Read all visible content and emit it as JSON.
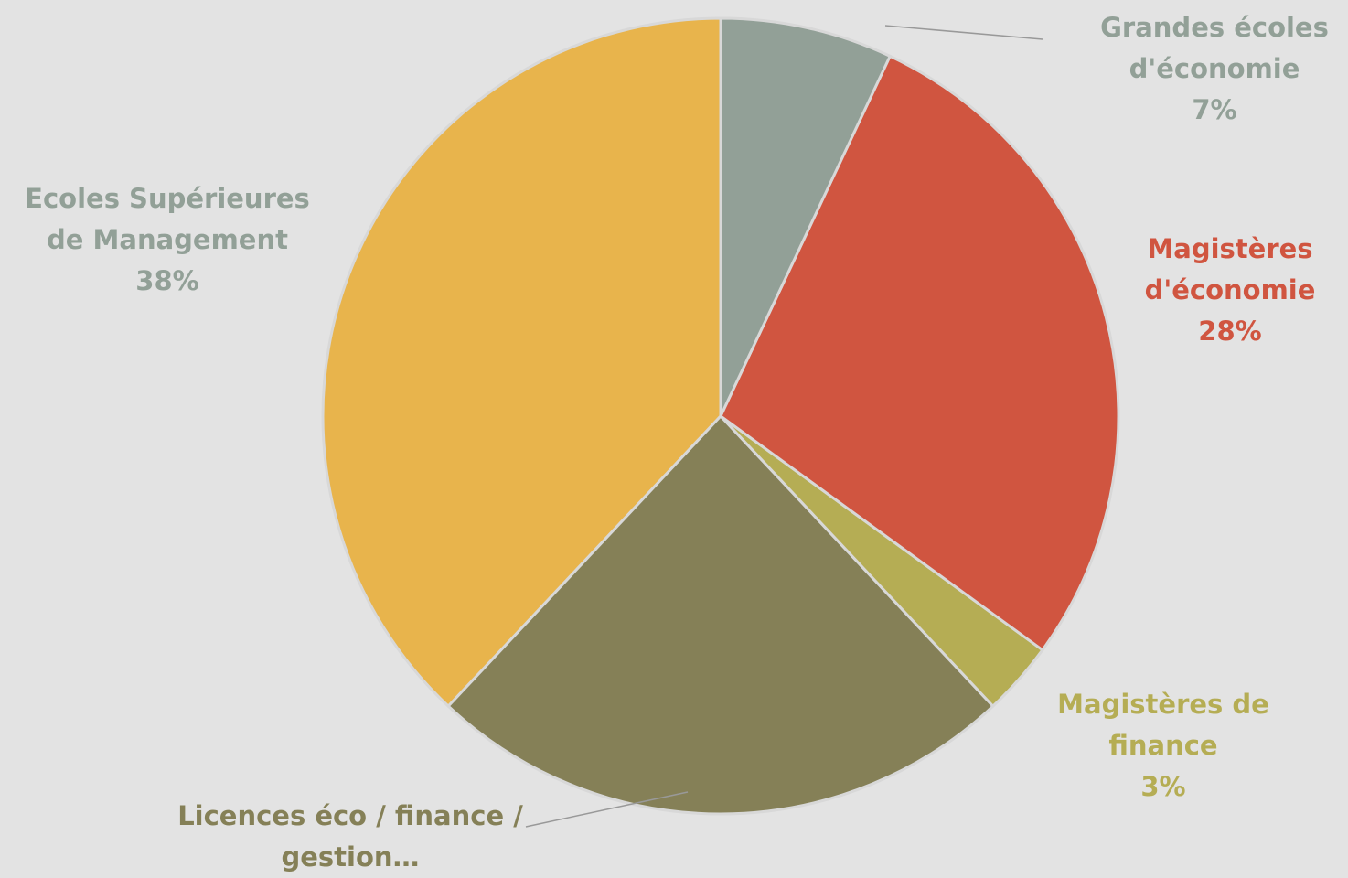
{
  "chart_data": {
    "type": "pie",
    "categories": [
      "Grandes écoles d'économie",
      "Magistères d'économie",
      "Magistères de finance",
      "Licences éco / finance / gestion…",
      "Ecoles Supérieures de Management"
    ],
    "values": [
      7,
      28,
      3,
      24,
      38
    ],
    "value_labels": [
      "7%",
      "28%",
      "3%",
      null,
      "38%"
    ],
    "colors": [
      "#92a097",
      "#d05540",
      "#b5ad54",
      "#858057",
      "#e8b44c"
    ]
  }
}
